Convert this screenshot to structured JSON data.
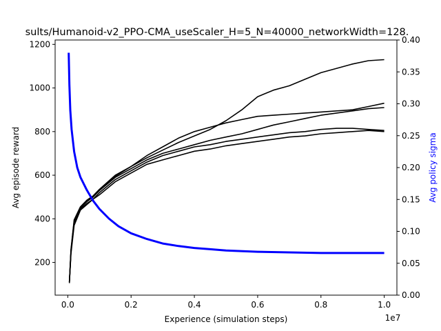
{
  "chart_data": {
    "type": "line",
    "title": "sults/Humanoid-v2_PPO-CMA_useScaler_H=5_N=40000_networkWidth=128.",
    "xlabel": "Experience (simulation steps)",
    "x_offset_label": "1e7",
    "ylabel_left": "Avg episode reward",
    "ylabel_right": "Avg policy sigma",
    "xlim": [
      -0.04,
      1.04
    ],
    "ylim_left": [
      50,
      1220
    ],
    "ylim_right": [
      0.0,
      0.4
    ],
    "x_ticks": [
      "0.0",
      "0.2",
      "0.4",
      "0.6",
      "0.8",
      "1.0"
    ],
    "y_ticks_left": [
      "200",
      "400",
      "600",
      "800",
      "1000",
      "1200"
    ],
    "y_ticks_right": [
      "0.00",
      "0.05",
      "0.10",
      "0.15",
      "0.20",
      "0.25",
      "0.30",
      "0.35",
      "0.40"
    ],
    "colors": {
      "reward": "#000000",
      "sigma": "#0000ff",
      "right_label": "#0000ff"
    },
    "grid": false,
    "series": [
      {
        "axis": "left",
        "color": "#000000",
        "x": [
          0.005,
          0.01,
          0.02,
          0.04,
          0.06,
          0.08,
          0.1,
          0.15,
          0.2,
          0.25,
          0.3,
          0.35,
          0.4,
          0.45,
          0.5,
          0.55,
          0.6,
          0.65,
          0.7,
          0.75,
          0.8,
          0.85,
          0.9,
          0.95,
          1.0
        ],
        "values": [
          110,
          250,
          380,
          445,
          470,
          490,
          510,
          570,
          610,
          650,
          670,
          690,
          710,
          720,
          735,
          745,
          755,
          765,
          775,
          780,
          790,
          795,
          800,
          805,
          800
        ]
      },
      {
        "axis": "left",
        "color": "#000000",
        "x": [
          0.005,
          0.01,
          0.02,
          0.04,
          0.06,
          0.08,
          0.1,
          0.15,
          0.2,
          0.25,
          0.3,
          0.35,
          0.4,
          0.45,
          0.5,
          0.55,
          0.6,
          0.65,
          0.7,
          0.75,
          0.8,
          0.85,
          0.9,
          0.95,
          1.0
        ],
        "values": [
          105,
          240,
          370,
          440,
          465,
          490,
          520,
          580,
          620,
          660,
          690,
          710,
          730,
          740,
          755,
          765,
          775,
          785,
          795,
          800,
          810,
          815,
          815,
          810,
          805
        ]
      },
      {
        "axis": "left",
        "color": "#000000",
        "x": [
          0.005,
          0.01,
          0.02,
          0.04,
          0.06,
          0.08,
          0.1,
          0.15,
          0.2,
          0.25,
          0.3,
          0.35,
          0.4,
          0.45,
          0.5,
          0.55,
          0.6,
          0.65,
          0.7,
          0.75,
          0.8,
          0.85,
          0.9,
          0.95,
          1.0
        ],
        "values": [
          108,
          255,
          390,
          450,
          480,
          500,
          530,
          590,
          630,
          670,
          700,
          720,
          740,
          760,
          775,
          790,
          810,
          830,
          845,
          860,
          875,
          885,
          895,
          905,
          910
        ]
      },
      {
        "axis": "left",
        "color": "#000000",
        "x": [
          0.005,
          0.01,
          0.02,
          0.04,
          0.06,
          0.08,
          0.1,
          0.15,
          0.2,
          0.25,
          0.3,
          0.35,
          0.4,
          0.45,
          0.5,
          0.55,
          0.6,
          0.65,
          0.7,
          0.75,
          0.8,
          0.85,
          0.9,
          0.95,
          1.0
        ],
        "values": [
          112,
          260,
          395,
          455,
          485,
          505,
          535,
          600,
          640,
          690,
          730,
          770,
          800,
          820,
          840,
          855,
          870,
          875,
          880,
          885,
          890,
          895,
          900,
          915,
          930
        ]
      },
      {
        "axis": "left",
        "color": "#000000",
        "x": [
          0.005,
          0.01,
          0.02,
          0.04,
          0.06,
          0.08,
          0.1,
          0.15,
          0.2,
          0.25,
          0.3,
          0.35,
          0.4,
          0.45,
          0.5,
          0.55,
          0.6,
          0.65,
          0.7,
          0.75,
          0.8,
          0.85,
          0.9,
          0.95,
          1.0
        ],
        "values": [
          110,
          250,
          385,
          450,
          478,
          500,
          530,
          595,
          640,
          680,
          715,
          750,
          780,
          810,
          850,
          900,
          960,
          990,
          1010,
          1040,
          1070,
          1090,
          1110,
          1125,
          1130
        ]
      },
      {
        "axis": "right",
        "color": "#0000ff",
        "x": [
          0.003,
          0.005,
          0.008,
          0.012,
          0.02,
          0.03,
          0.04,
          0.06,
          0.08,
          0.1,
          0.13,
          0.16,
          0.2,
          0.25,
          0.3,
          0.35,
          0.4,
          0.45,
          0.5,
          0.6,
          0.7,
          0.8,
          0.9,
          1.0
        ],
        "values": [
          0.38,
          0.33,
          0.29,
          0.26,
          0.225,
          0.2,
          0.185,
          0.165,
          0.148,
          0.135,
          0.12,
          0.108,
          0.097,
          0.088,
          0.081,
          0.077,
          0.074,
          0.072,
          0.07,
          0.068,
          0.067,
          0.066,
          0.066,
          0.066
        ]
      }
    ]
  }
}
